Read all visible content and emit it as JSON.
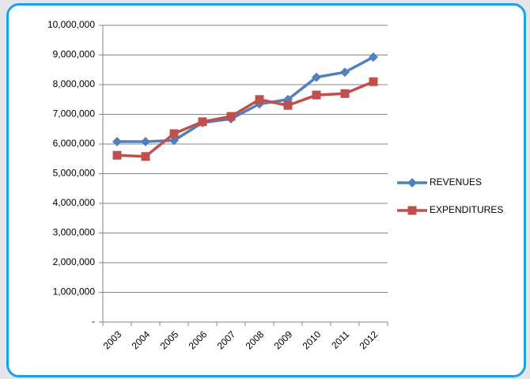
{
  "chart_data": {
    "type": "line",
    "categories": [
      "2003",
      "2004",
      "2005",
      "2006",
      "2007",
      "2008",
      "2009",
      "2010",
      "2011",
      "2012"
    ],
    "series": [
      {
        "name": "REVENUES",
        "color": "#4f81bd",
        "marker": "diamond",
        "values": [
          6080000,
          6080000,
          6120000,
          6720000,
          6850000,
          7350000,
          7500000,
          8250000,
          8420000,
          8930000
        ]
      },
      {
        "name": "EXPENDITURES",
        "color": "#c0504d",
        "marker": "square",
        "values": [
          5620000,
          5580000,
          6350000,
          6750000,
          6930000,
          7500000,
          7300000,
          7650000,
          7700000,
          8100000
        ]
      }
    ],
    "ylim": [
      0,
      10000000
    ],
    "yticks": [
      {
        "value": 0,
        "label": "-"
      },
      {
        "value": 1000000,
        "label": "1,000,000"
      },
      {
        "value": 2000000,
        "label": "2,000,000"
      },
      {
        "value": 3000000,
        "label": "3,000,000"
      },
      {
        "value": 4000000,
        "label": "4,000,000"
      },
      {
        "value": 5000000,
        "label": "5,000,000"
      },
      {
        "value": 6000000,
        "label": "6,000,000"
      },
      {
        "value": 7000000,
        "label": "7,000,000"
      },
      {
        "value": 8000000,
        "label": "8,000,000"
      },
      {
        "value": 9000000,
        "label": "9,000,000"
      },
      {
        "value": 10000000,
        "label": "10,000,000"
      }
    ],
    "grid": true,
    "legend": "right"
  }
}
